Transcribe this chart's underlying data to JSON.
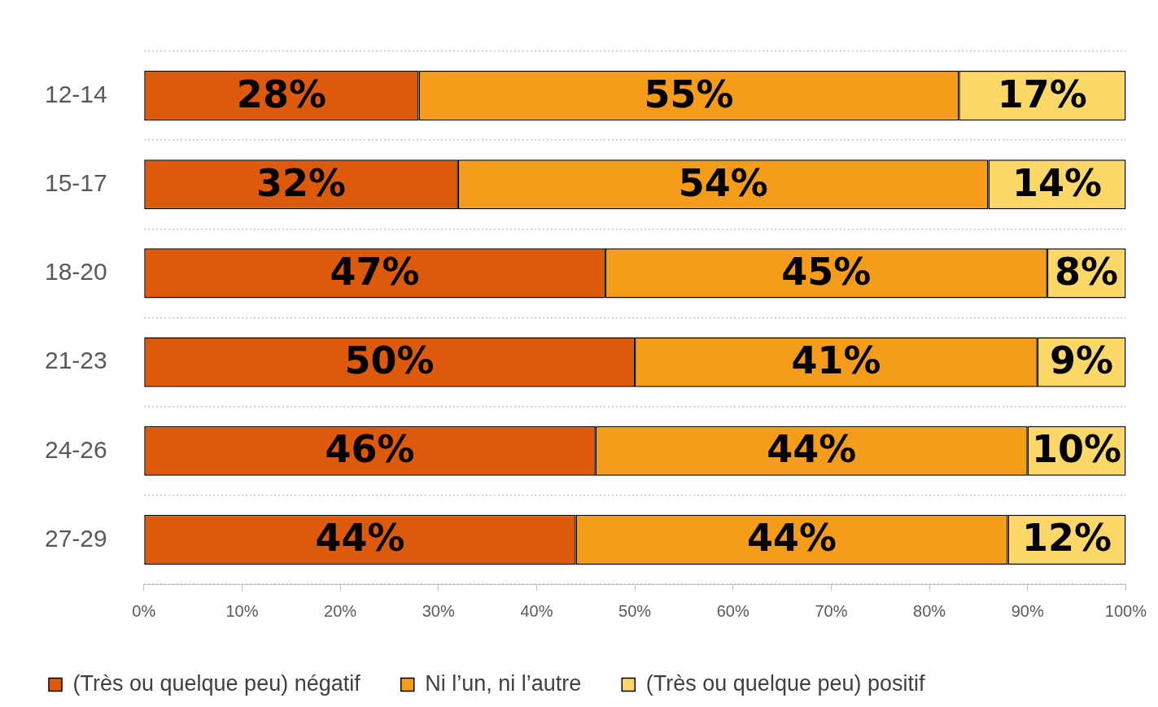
{
  "chart_data": {
    "type": "bar",
    "orientation": "horizontal",
    "stacked": true,
    "legend": "bottom",
    "grid": "y",
    "categories": [
      "12-14",
      "15-17",
      "18-20",
      "21-23",
      "24-26",
      "27-29"
    ],
    "series": [
      {
        "name": "(Très ou quelque peu) négatif",
        "color": "#dd5a0c",
        "values": [
          28,
          32,
          47,
          50,
          46,
          44
        ],
        "value_labels": [
          "28%",
          "32%",
          "47%",
          "50%",
          "46%",
          "44%"
        ]
      },
      {
        "name": "Ni l’un, ni l’autre",
        "color": "#f59c1a",
        "values": [
          55,
          54,
          45,
          41,
          44,
          44
        ],
        "value_labels": [
          "55%",
          "54%",
          "45%",
          "41%",
          "44%",
          "44%"
        ]
      },
      {
        "name": "(Très ou quelque peu) positif",
        "color": "#fdd868",
        "values": [
          17,
          14,
          8,
          9,
          10,
          12
        ],
        "value_labels": [
          "17%",
          "14%",
          "8%",
          "9%",
          "10%",
          "12%"
        ]
      }
    ],
    "xlim": [
      0,
      100
    ],
    "xticks": [
      {
        "value": 0,
        "label": "0%"
      },
      {
        "value": 10,
        "label": "10%"
      },
      {
        "value": 20,
        "label": "20%"
      },
      {
        "value": 30,
        "label": "30%"
      },
      {
        "value": 40,
        "label": "40%"
      },
      {
        "value": 50,
        "label": "50%"
      },
      {
        "value": 60,
        "label": "60%"
      },
      {
        "value": 70,
        "label": "70%"
      },
      {
        "value": 80,
        "label": "80%"
      },
      {
        "value": 90,
        "label": "90%"
      },
      {
        "value": 100,
        "label": "100%"
      }
    ]
  }
}
